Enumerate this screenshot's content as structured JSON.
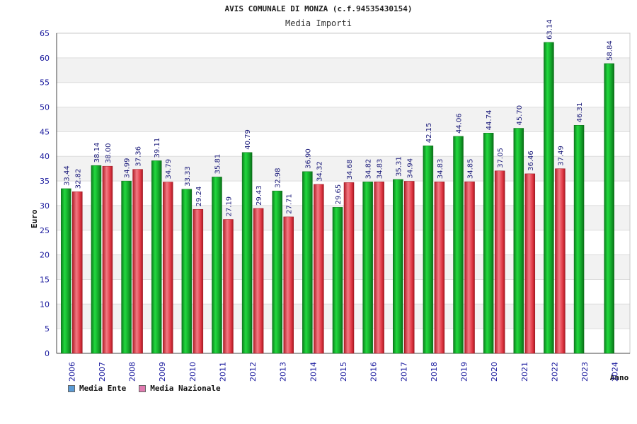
{
  "header": {
    "title": "AVIS COMUNALE DI MONZA (c.f.94535430154)",
    "subtitle": "Media Importi"
  },
  "legend": {
    "items": [
      {
        "label": "Media Ente",
        "color": "#5b9bd5"
      },
      {
        "label": "Media Nazionale",
        "color": "#e07bb0"
      }
    ]
  },
  "chart_data": {
    "type": "bar",
    "title": "Media Importi",
    "xlabel": "Anno",
    "ylabel": "Euro",
    "ylim": [
      0,
      65
    ],
    "yticks": [
      0,
      5,
      10,
      15,
      20,
      25,
      30,
      35,
      40,
      45,
      50,
      55,
      60,
      65
    ],
    "grid": "horizontal bands",
    "categories": [
      "2006",
      "2007",
      "2008",
      "2009",
      "2010",
      "2011",
      "2012",
      "2013",
      "2014",
      "2015",
      "2016",
      "2017",
      "2018",
      "2019",
      "2020",
      "2021",
      "2022",
      "2023",
      "2024"
    ],
    "series": [
      {
        "name": "Media Ente",
        "color": "#16b32e",
        "values": [
          33.44,
          38.14,
          34.99,
          39.11,
          33.33,
          35.81,
          40.79,
          32.98,
          36.9,
          29.65,
          34.82,
          35.31,
          42.15,
          44.06,
          44.74,
          45.7,
          63.14,
          46.31,
          58.84
        ],
        "labels": [
          "33.44",
          "38.14",
          "34.99",
          "39.11",
          "33.33",
          "35.81",
          "40.79",
          "32.98",
          "36.90",
          "29.65",
          "34.82",
          "35.31",
          "42.15",
          "44.06",
          "44.74",
          "45.70",
          "63.14",
          "46.31",
          "58.84"
        ]
      },
      {
        "name": "Media Nazionale",
        "color": "#e2313c",
        "values": [
          32.82,
          38.0,
          37.36,
          34.79,
          29.24,
          27.19,
          29.43,
          27.71,
          34.32,
          34.68,
          34.83,
          34.94,
          34.83,
          34.85,
          37.05,
          36.46,
          37.49,
          null,
          null
        ],
        "labels": [
          "32.82",
          "38.00",
          "37.36",
          "34.79",
          "29.24",
          "27.19",
          "29.43",
          "27.71",
          "34.32",
          "34.68",
          "34.83",
          "34.94",
          "34.83",
          "34.85",
          "37.05",
          "36.46",
          "37.49",
          "",
          ""
        ]
      }
    ]
  }
}
